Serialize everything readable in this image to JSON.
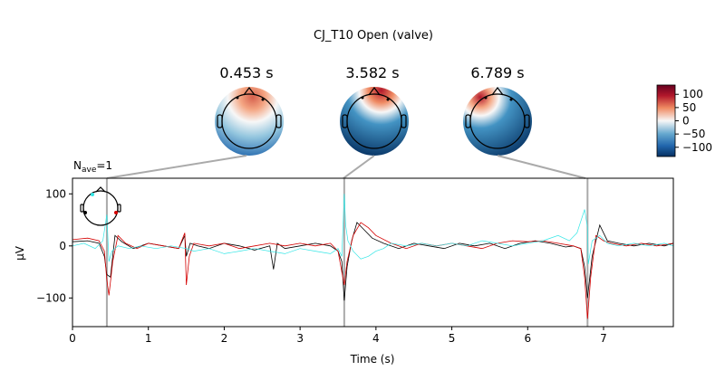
{
  "figure": {
    "suptitle": "CJ_T10 Open (valve)"
  },
  "topomaps": [
    {
      "time_label": "0.453 s",
      "time": 0.453
    },
    {
      "time_label": "3.582 s",
      "time": 3.582
    },
    {
      "time_label": "6.789 s",
      "time": 6.789
    }
  ],
  "colorbar": {
    "ticks": [
      "100",
      "50",
      "0",
      "−50",
      "−100"
    ],
    "tick_values": [
      100,
      50,
      0,
      -50,
      -100
    ],
    "range": [
      -135,
      135
    ]
  },
  "colors": {
    "series_black": "#000000",
    "series_red": "#d40000",
    "series_cyan": "#33e6e6",
    "marker_line": "#aaaaaa",
    "cmap_neg": "#053061",
    "cmap_pos": "#67001f"
  },
  "chart_data": {
    "type": "line",
    "title": "",
    "annotation_prefix": "N",
    "annotation_sub": "ave",
    "annotation_suffix": "=1",
    "xlabel": "Time (s)",
    "ylabel": "µV",
    "xlim": [
      0,
      7.92
    ],
    "ylim": [
      -155,
      130
    ],
    "xticks": [
      0,
      1,
      2,
      3,
      4,
      5,
      6,
      7
    ],
    "xtick_labels": [
      "0",
      "1",
      "2",
      "3",
      "4",
      "5",
      "6",
      "7"
    ],
    "yticks": [
      100,
      0,
      -100
    ],
    "ytick_labels": [
      "100",
      "0",
      "−100"
    ],
    "vlines": [
      0.453,
      3.582,
      6.789
    ],
    "grid": false,
    "series": [
      {
        "color": "#000000",
        "x": [
          0.0,
          0.2,
          0.35,
          0.42,
          0.453,
          0.5,
          0.56,
          0.65,
          0.8,
          1.0,
          1.2,
          1.4,
          1.48,
          1.5,
          1.55,
          1.65,
          1.8,
          2.0,
          2.2,
          2.4,
          2.6,
          2.65,
          2.7,
          2.8,
          3.0,
          3.2,
          3.4,
          3.5,
          3.55,
          3.582,
          3.62,
          3.68,
          3.75,
          3.85,
          3.95,
          4.1,
          4.3,
          4.5,
          4.7,
          4.9,
          5.1,
          5.3,
          5.5,
          5.7,
          5.9,
          6.1,
          6.3,
          6.5,
          6.6,
          6.7,
          6.75,
          6.789,
          6.85,
          6.95,
          7.05,
          7.2,
          7.4,
          7.6,
          7.8,
          7.92
        ],
        "y": [
          8,
          10,
          5,
          -20,
          -55,
          -60,
          20,
          8,
          -5,
          5,
          0,
          -5,
          20,
          -20,
          5,
          0,
          -5,
          5,
          0,
          -8,
          0,
          -45,
          5,
          -5,
          0,
          5,
          0,
          -10,
          -30,
          -105,
          -40,
          10,
          45,
          30,
          15,
          5,
          -5,
          5,
          0,
          -5,
          5,
          0,
          5,
          -5,
          5,
          10,
          5,
          -2,
          0,
          -5,
          -40,
          -100,
          -20,
          40,
          10,
          5,
          0,
          5,
          0,
          5
        ]
      },
      {
        "color": "#d40000",
        "x": [
          0.0,
          0.2,
          0.35,
          0.42,
          0.453,
          0.48,
          0.53,
          0.6,
          0.7,
          0.85,
          1.0,
          1.2,
          1.4,
          1.48,
          1.5,
          1.54,
          1.6,
          1.8,
          2.0,
          2.2,
          2.4,
          2.6,
          2.8,
          3.0,
          3.2,
          3.4,
          3.5,
          3.55,
          3.582,
          3.62,
          3.7,
          3.8,
          3.9,
          4.0,
          4.2,
          4.4,
          4.6,
          4.8,
          5.0,
          5.2,
          5.4,
          5.6,
          5.8,
          6.0,
          6.2,
          6.4,
          6.6,
          6.7,
          6.75,
          6.789,
          6.83,
          6.9,
          7.0,
          7.1,
          7.3,
          7.5,
          7.7,
          7.92
        ],
        "y": [
          12,
          15,
          10,
          -10,
          -65,
          -95,
          -30,
          20,
          5,
          -5,
          5,
          0,
          -5,
          25,
          -75,
          -20,
          5,
          0,
          5,
          -5,
          0,
          5,
          0,
          5,
          0,
          5,
          -10,
          -50,
          -75,
          -30,
          20,
          45,
          35,
          20,
          5,
          -5,
          5,
          0,
          5,
          0,
          -5,
          5,
          10,
          8,
          10,
          5,
          0,
          -5,
          -60,
          -140,
          -60,
          20,
          10,
          5,
          0,
          5,
          0,
          5
        ]
      },
      {
        "color": "#33e6e6",
        "x": [
          0.0,
          0.15,
          0.3,
          0.4,
          0.453,
          0.48,
          0.52,
          0.6,
          0.75,
          0.9,
          1.1,
          1.3,
          1.5,
          1.6,
          1.8,
          2.0,
          2.2,
          2.4,
          2.6,
          2.8,
          3.0,
          3.2,
          3.4,
          3.5,
          3.55,
          3.582,
          3.6,
          3.63,
          3.7,
          3.8,
          3.9,
          4.0,
          4.1,
          4.2,
          4.4,
          4.6,
          4.8,
          5.0,
          5.2,
          5.4,
          5.6,
          5.8,
          6.0,
          6.2,
          6.4,
          6.55,
          6.65,
          6.75,
          6.789,
          6.8,
          6.85,
          6.95,
          7.05,
          7.2,
          7.4,
          7.6,
          7.8,
          7.92
        ],
        "y": [
          0,
          5,
          -5,
          10,
          60,
          -30,
          -10,
          0,
          -5,
          0,
          -5,
          0,
          -5,
          -10,
          -5,
          -15,
          -10,
          -5,
          -10,
          -15,
          -5,
          -10,
          -15,
          -5,
          -20,
          100,
          40,
          10,
          -10,
          -25,
          -20,
          -10,
          -5,
          5,
          0,
          5,
          0,
          5,
          0,
          10,
          5,
          0,
          5,
          10,
          20,
          10,
          25,
          70,
          35,
          -35,
          10,
          20,
          5,
          0,
          5,
          0,
          5,
          0
        ]
      }
    ]
  }
}
